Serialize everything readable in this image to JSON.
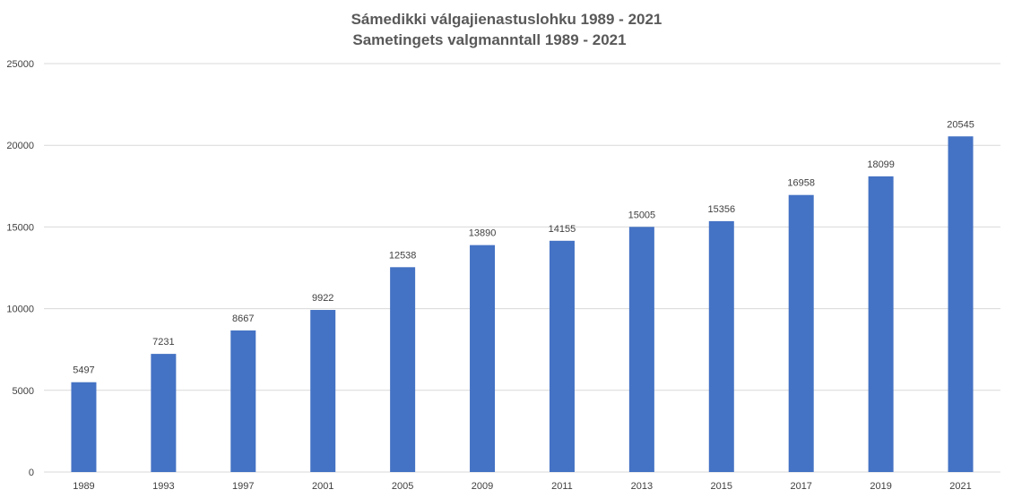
{
  "chart_data": {
    "type": "bar",
    "title": "Sámedikki válgajienastuslohku 1989 - 2021",
    "subtitle": "Sametingets valgmanntall 1989 - 2021",
    "xlabel": "",
    "ylabel": "",
    "categories": [
      "1989",
      "1993",
      "1997",
      "2001",
      "2005",
      "2009",
      "2011",
      "2013",
      "2015",
      "2017",
      "2019",
      "2021"
    ],
    "values": [
      5497,
      7231,
      8667,
      9922,
      12538,
      13890,
      14155,
      15005,
      15356,
      16958,
      18099,
      20545
    ],
    "ylim": [
      0,
      25000
    ],
    "yticks": [
      0,
      5000,
      10000,
      15000,
      20000,
      25000
    ],
    "grid": true,
    "legend": "none",
    "bar_color": "#4472c4",
    "data_labels": true
  }
}
